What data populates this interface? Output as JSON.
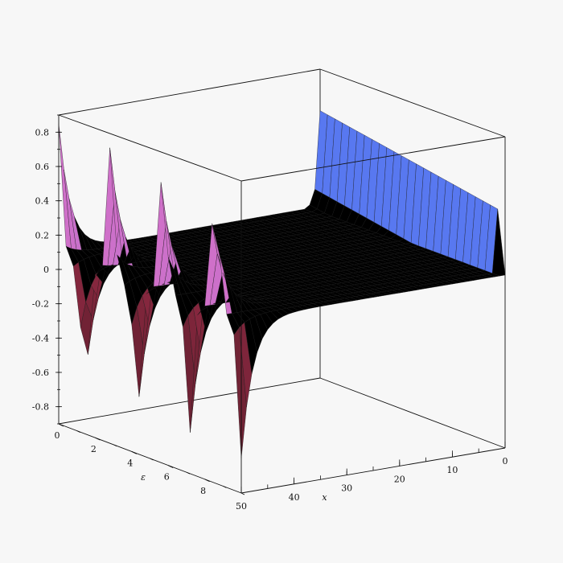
{
  "chart_data": {
    "type": "surface3d",
    "title": "",
    "axes": {
      "x": {
        "label": "x",
        "range": [
          0,
          50
        ],
        "ticks": [
          "0",
          "10",
          "20",
          "30",
          "40",
          "50"
        ]
      },
      "eps": {
        "label": "ε",
        "range": [
          0,
          10
        ],
        "ticks": [
          "0",
          "2",
          "4",
          "6",
          "8"
        ]
      },
      "z": {
        "label": "",
        "range": [
          -0.9,
          0.9
        ],
        "ticks": [
          "-0.8",
          "-0.6",
          "-0.4",
          "-0.2",
          "0",
          "0.2",
          "0.4",
          "0.6",
          "0.8"
        ]
      }
    },
    "surface": {
      "description_values": "plateau near z=0.1 for large x, decaying oscillation with spikes toward small x along the epsilon direction",
      "front_valleys_approx_min": [
        -0.67,
        -0.66,
        -0.62,
        -0.68,
        -0.55,
        -0.5,
        -0.75,
        -0.7
      ],
      "back_peaks_approx_max": [
        0.88,
        0.86,
        0.5,
        0.68,
        0.72,
        0.62,
        0.72
      ],
      "plateau_level": 0.1
    },
    "colors": {
      "valley": "#8a2840",
      "peak": "#d070c8",
      "plateau_front": "#f4f0a0",
      "plateau_mid": "#a8f0c8",
      "plateau_back": "#5878f0"
    }
  }
}
